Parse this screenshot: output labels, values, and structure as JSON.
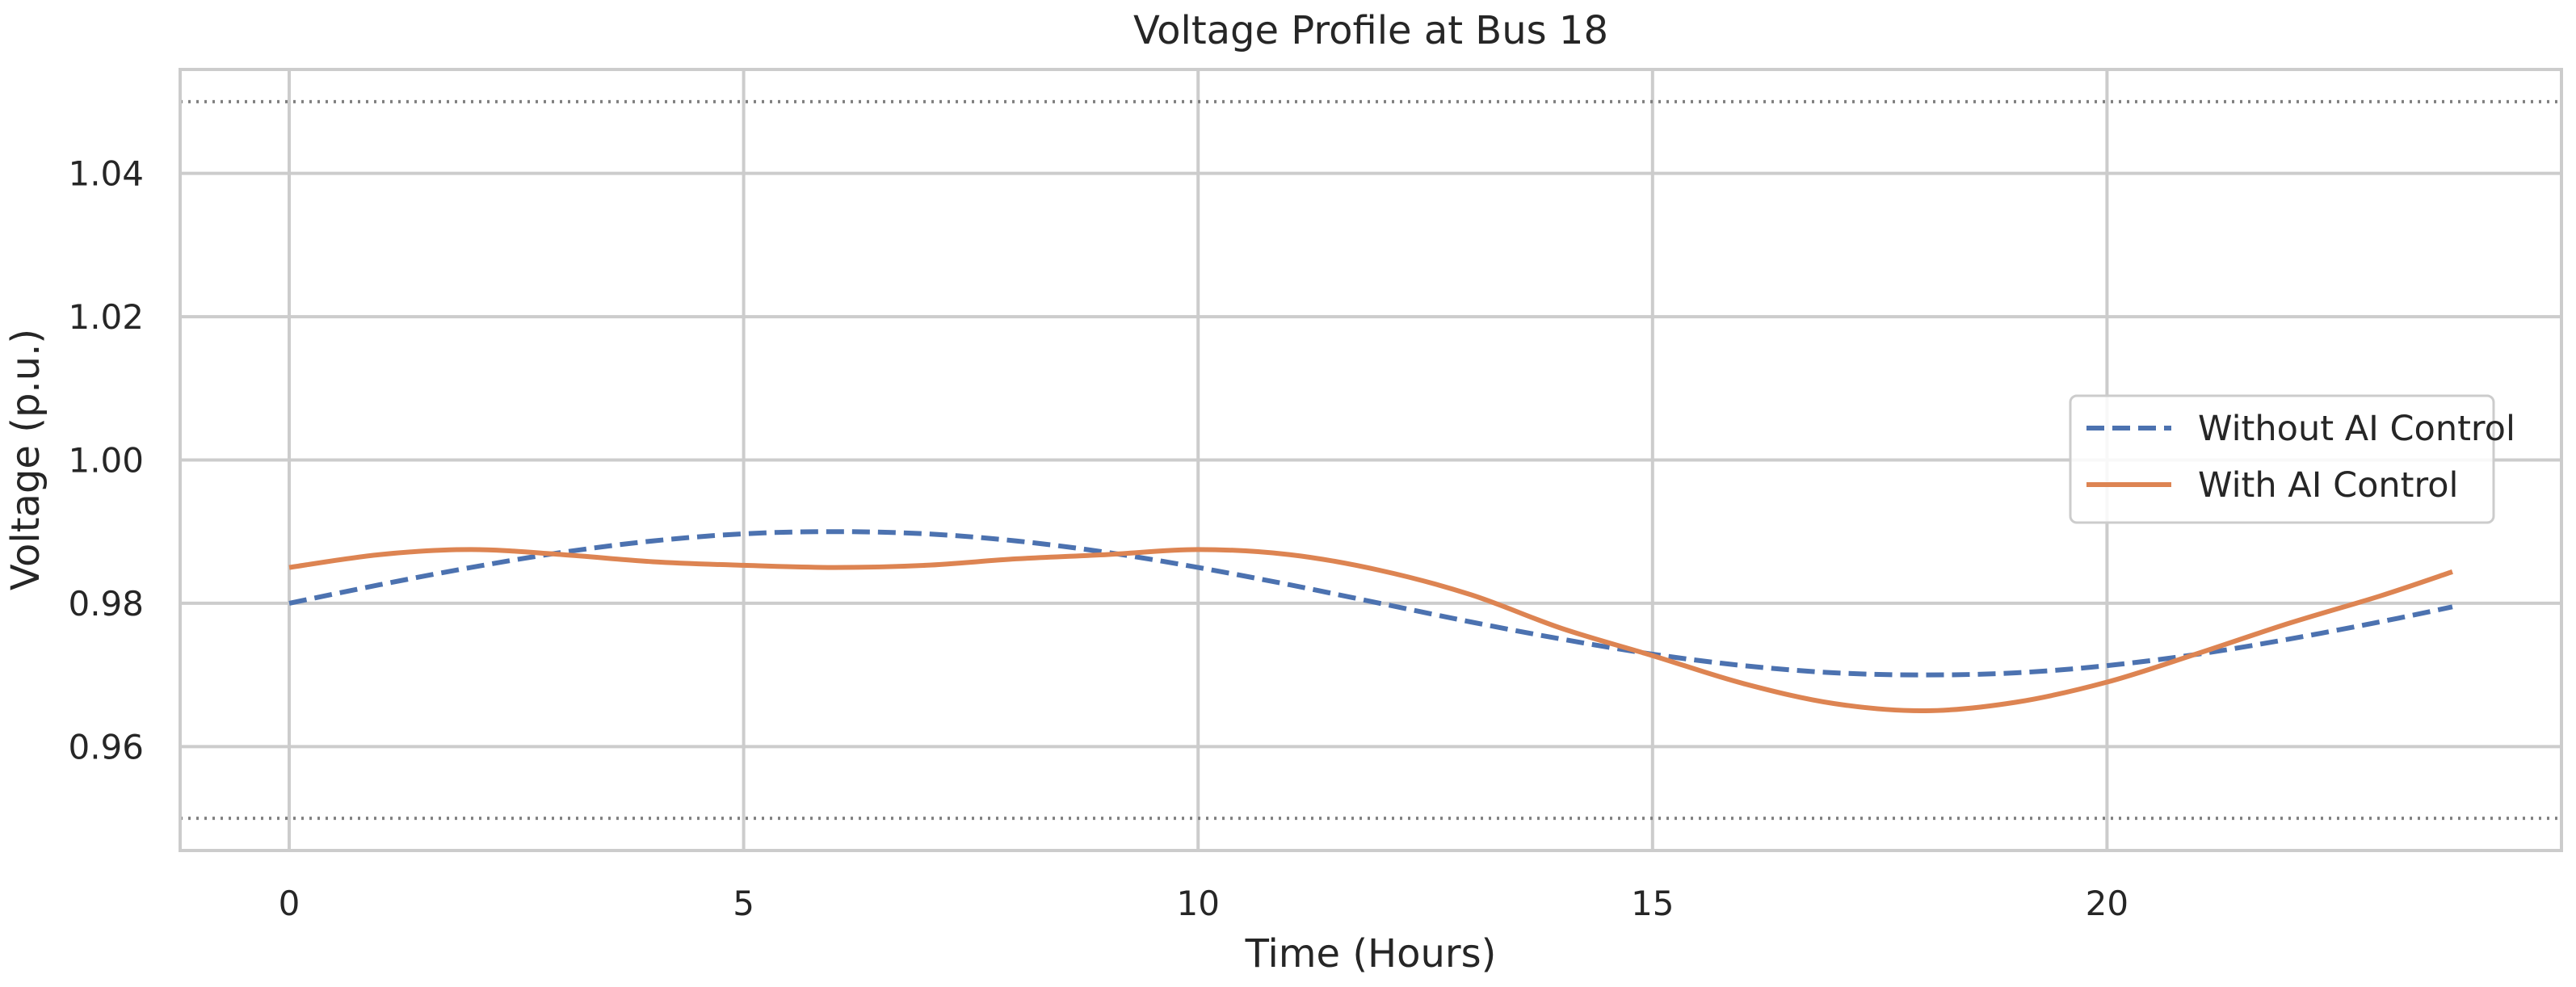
{
  "chart_data": {
    "type": "line",
    "title": "Voltage Profile at Bus 18",
    "xlabel": "Time (Hours)",
    "ylabel": "Voltage (p.u.)",
    "xlim": [
      -1.2,
      25
    ],
    "ylim": [
      0.9455,
      1.0545
    ],
    "xticks": [
      0,
      5,
      10,
      15,
      20
    ],
    "yticks": [
      0.96,
      0.98,
      1.0,
      1.02,
      1.04
    ],
    "ytick_labels": [
      "0.96",
      "0.98",
      "1.00",
      "1.02",
      "1.04"
    ],
    "grid": true,
    "legend_position": "right",
    "reference_lines": [
      {
        "y": 1.05,
        "style": "dotted",
        "color": "#808080"
      },
      {
        "y": 0.95,
        "style": "dotted",
        "color": "#808080"
      }
    ],
    "x": [
      0,
      1,
      2,
      3,
      4,
      5,
      6,
      7,
      8,
      9,
      10,
      11,
      12,
      13,
      14,
      15,
      16,
      17,
      18,
      19,
      20,
      21,
      22,
      23,
      23.8
    ],
    "series": [
      {
        "name": "Without AI Control",
        "color": "#4C72B0",
        "style": "dashed",
        "values": [
          0.98,
          0.9826,
          0.985,
          0.9871,
          0.9887,
          0.9897,
          0.99,
          0.9897,
          0.9887,
          0.9871,
          0.985,
          0.9826,
          0.98,
          0.9774,
          0.975,
          0.9729,
          0.9713,
          0.9703,
          0.97,
          0.9703,
          0.9713,
          0.9729,
          0.975,
          0.9774,
          0.9795
        ]
      },
      {
        "name": "With AI Control",
        "color": "#DD8452",
        "style": "solid",
        "values": [
          0.985,
          0.9868,
          0.9875,
          0.9868,
          0.9858,
          0.9853,
          0.985,
          0.9853,
          0.9862,
          0.9868,
          0.9875,
          0.9868,
          0.9846,
          0.9812,
          0.9765,
          0.9727,
          0.9688,
          0.966,
          0.965,
          0.9662,
          0.969,
          0.973,
          0.9772,
          0.981,
          0.9844
        ]
      }
    ]
  }
}
